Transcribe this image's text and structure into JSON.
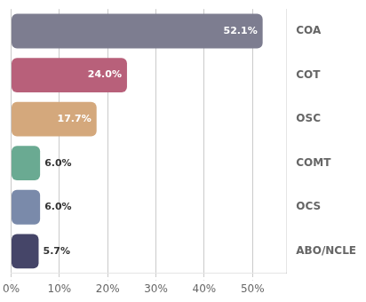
{
  "chart_data": {
    "type": "bar",
    "orientation": "horizontal",
    "categories": [
      "COA",
      "COT",
      "OSC",
      "COMT",
      "OCS",
      "ABO/NCLE"
    ],
    "values": [
      52.1,
      24.0,
      17.7,
      6.0,
      6.0,
      5.7
    ],
    "value_labels": [
      "52.1%",
      "24.0%",
      "17.7%",
      "6.0%",
      "6.0%",
      "5.7%"
    ],
    "colors": [
      "#7d7d90",
      "#b8607a",
      "#d4a87c",
      "#6aaa92",
      "#7a8aaa",
      "#454568"
    ],
    "xlim": [
      0,
      57
    ],
    "xticks": [
      {
        "value": 0,
        "label": "0%"
      },
      {
        "value": 10,
        "label": "10%"
      },
      {
        "value": 20,
        "label": "20%"
      },
      {
        "value": 30,
        "label": "30%"
      },
      {
        "value": 40,
        "label": "40%"
      },
      {
        "value": 50,
        "label": "50%"
      }
    ],
    "grid": true,
    "data_labels": true
  }
}
